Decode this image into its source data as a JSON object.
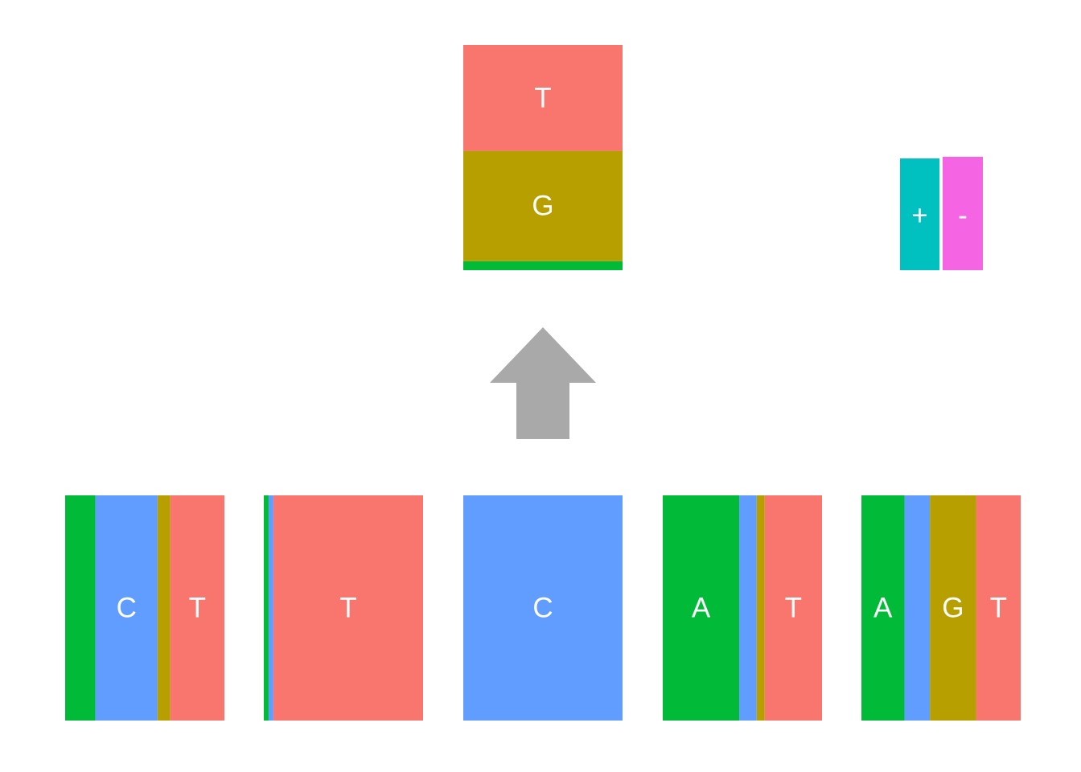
{
  "colors": {
    "A": "#00BA38",
    "C": "#619CFF",
    "G": "#B79F00",
    "T": "#F8766D",
    "plus": "#00C0C0",
    "minus": "#F564E3",
    "arrow": "#A9A9A9"
  },
  "output_column": {
    "composition": [
      {
        "base": "A",
        "fraction": 0.04,
        "label": ""
      },
      {
        "base": "G",
        "fraction": 0.49,
        "label": "G"
      },
      {
        "base": "T",
        "fraction": 0.47,
        "label": "T"
      }
    ]
  },
  "strand": {
    "segments": [
      {
        "name": "plus",
        "label": "+"
      },
      {
        "name": "minus",
        "label": "-"
      }
    ]
  },
  "input_columns": [
    {
      "composition": [
        {
          "base": "A",
          "fraction": 0.19,
          "label": ""
        },
        {
          "base": "C",
          "fraction": 0.39,
          "label": "C"
        },
        {
          "base": "G",
          "fraction": 0.08,
          "label": ""
        },
        {
          "base": "T",
          "fraction": 0.34,
          "label": "T"
        }
      ]
    },
    {
      "composition": [
        {
          "base": "A",
          "fraction": 0.03,
          "label": ""
        },
        {
          "base": "C",
          "fraction": 0.03,
          "label": ""
        },
        {
          "base": "T",
          "fraction": 0.94,
          "label": "T"
        }
      ]
    },
    {
      "composition": [
        {
          "base": "C",
          "fraction": 1.0,
          "label": "C"
        }
      ]
    },
    {
      "composition": [
        {
          "base": "A",
          "fraction": 0.48,
          "label": "A"
        },
        {
          "base": "C",
          "fraction": 0.11,
          "label": ""
        },
        {
          "base": "G",
          "fraction": 0.05,
          "label": ""
        },
        {
          "base": "T",
          "fraction": 0.36,
          "label": "T"
        }
      ]
    },
    {
      "composition": [
        {
          "base": "A",
          "fraction": 0.27,
          "label": "A"
        },
        {
          "base": "C",
          "fraction": 0.16,
          "label": ""
        },
        {
          "base": "G",
          "fraction": 0.29,
          "label": "G"
        },
        {
          "base": "T",
          "fraction": 0.28,
          "label": "T"
        }
      ]
    }
  ]
}
